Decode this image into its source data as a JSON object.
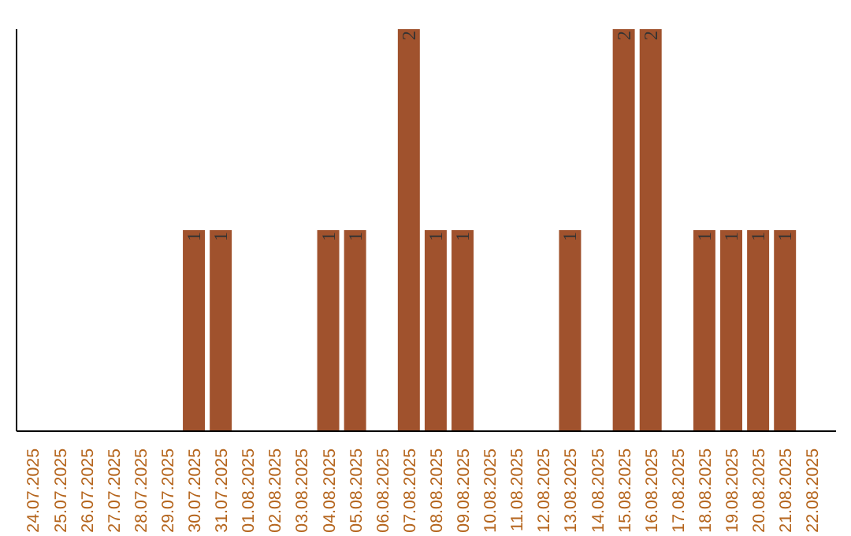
{
  "chart_data": {
    "type": "bar",
    "categories": [
      "24.07.2025",
      "25.07.2025",
      "26.07.2025",
      "27.07.2025",
      "28.07.2025",
      "29.07.2025",
      "30.07.2025",
      "31.07.2025",
      "01.08.2025",
      "02.08.2025",
      "03.08.2025",
      "04.08.2025",
      "05.08.2025",
      "06.08.2025",
      "07.08.2025",
      "08.08.2025",
      "09.08.2025",
      "10.08.2025",
      "11.08.2025",
      "12.08.2025",
      "13.08.2025",
      "14.08.2025",
      "15.08.2025",
      "16.08.2025",
      "17.08.2025",
      "18.08.2025",
      "19.08.2025",
      "20.08.2025",
      "21.08.2025",
      "22.08.2025"
    ],
    "values": [
      0,
      0,
      0,
      0,
      0,
      0,
      1,
      1,
      0,
      0,
      0,
      1,
      1,
      0,
      2,
      1,
      1,
      0,
      0,
      0,
      1,
      0,
      2,
      2,
      0,
      1,
      1,
      1,
      1,
      0
    ],
    "value_labels": [
      null,
      null,
      null,
      null,
      null,
      null,
      "1",
      "1",
      null,
      null,
      null,
      "1",
      "1",
      null,
      "2",
      "1",
      "1",
      null,
      null,
      null,
      "1",
      null,
      "2",
      "2",
      null,
      "1",
      "1",
      "1",
      "1",
      null
    ],
    "color": "#a0522d"
  }
}
